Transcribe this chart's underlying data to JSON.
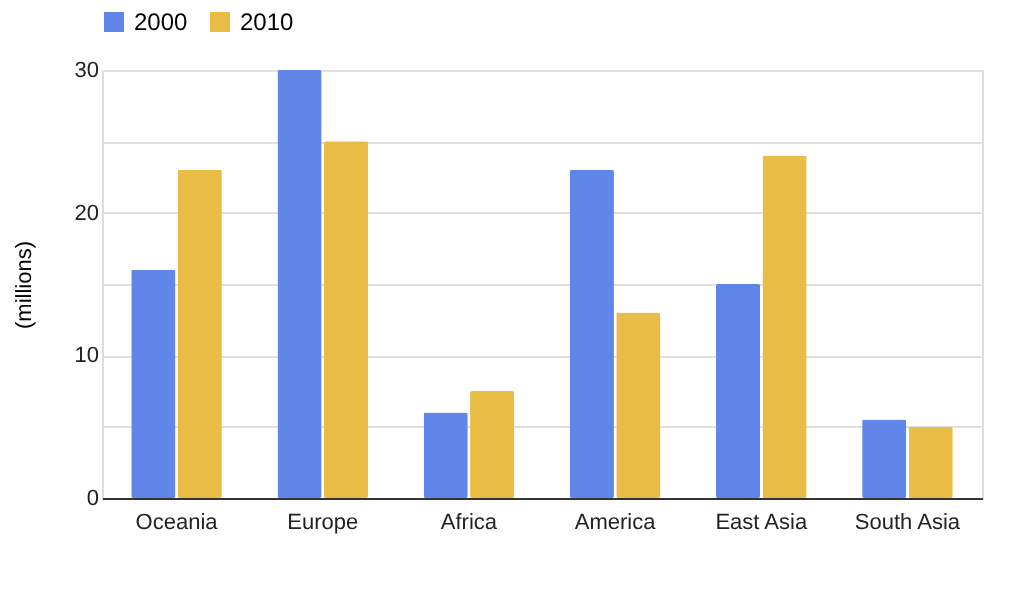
{
  "chart_data": {
    "type": "bar",
    "ylabel": "(millions)",
    "categories": [
      "Oceania",
      "Europe",
      "Africa",
      "America",
      "East Asia",
      "South Asia"
    ],
    "series": [
      {
        "name": "2000",
        "color": "#5f86e8",
        "values": [
          16,
          30,
          6,
          23,
          15,
          5.5
        ]
      },
      {
        "name": "2010",
        "color": "#e9bd45",
        "values": [
          23,
          25,
          7.5,
          13,
          24,
          5
        ]
      }
    ],
    "ylim": [
      0,
      30
    ],
    "yticks": [
      0,
      {
        "value": 5,
        "label": null
      },
      10,
      {
        "value": 15,
        "label": null
      },
      20,
      {
        "value": 25,
        "label": null
      },
      30
    ],
    "grid": "y",
    "legend": "top"
  }
}
